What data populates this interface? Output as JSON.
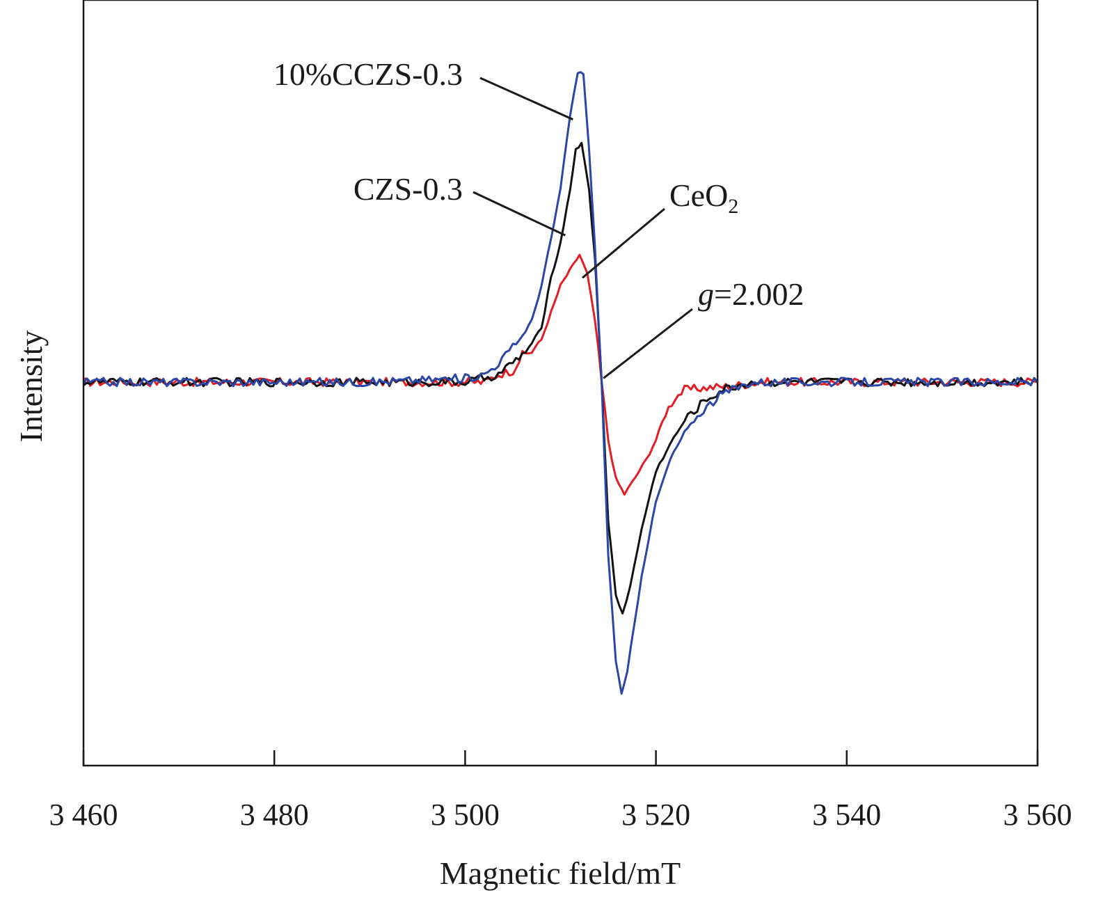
{
  "chart_data": {
    "type": "line",
    "xlabel": "Magnetic field/mT",
    "ylabel": "Intensity",
    "xlim": [
      3460,
      3560
    ],
    "ylim": [
      -1.0,
      1.0
    ],
    "x_ticks": [
      3460,
      3480,
      3500,
      3520,
      3540,
      3560
    ],
    "x_tick_labels": [
      "3 460",
      "3 480",
      "3 500",
      "3 520",
      "3 540",
      "3 560"
    ],
    "y_ticks_shown": false,
    "grid": false,
    "legend": "none (series labeled by annotations with leader lines)",
    "series": [
      {
        "name": "CeO2",
        "color": "#e31e24",
        "points": [
          [
            3460,
            0.0
          ],
          [
            3490,
            0.0
          ],
          [
            3500,
            0.0
          ],
          [
            3502,
            0.0
          ],
          [
            3503.5,
            0.02
          ],
          [
            3505,
            0.03
          ],
          [
            3506,
            0.07
          ],
          [
            3507,
            0.08
          ],
          [
            3508,
            0.11
          ],
          [
            3509,
            0.18
          ],
          [
            3510,
            0.25
          ],
          [
            3511,
            0.29
          ],
          [
            3512,
            0.33
          ],
          [
            3512.8,
            0.28
          ],
          [
            3513.6,
            0.16
          ],
          [
            3514.3,
            0.0
          ],
          [
            3515,
            -0.15
          ],
          [
            3515.8,
            -0.25
          ],
          [
            3516.7,
            -0.29
          ],
          [
            3517.5,
            -0.26
          ],
          [
            3519,
            -0.2
          ],
          [
            3520,
            -0.15
          ],
          [
            3521,
            -0.08
          ],
          [
            3522,
            -0.04
          ],
          [
            3523,
            -0.02
          ],
          [
            3525,
            -0.015
          ],
          [
            3528,
            -0.01
          ],
          [
            3531,
            0.0
          ],
          [
            3545,
            0.0
          ],
          [
            3560,
            0.0
          ]
        ]
      },
      {
        "name": "CZS-0.3",
        "color": "#111111",
        "points": [
          [
            3460,
            0.0
          ],
          [
            3490,
            0.0
          ],
          [
            3500,
            0.0
          ],
          [
            3502,
            0.01
          ],
          [
            3503.5,
            0.02
          ],
          [
            3505,
            0.05
          ],
          [
            3506,
            0.07
          ],
          [
            3507,
            0.1
          ],
          [
            3508,
            0.14
          ],
          [
            3509,
            0.27
          ],
          [
            3510,
            0.36
          ],
          [
            3511,
            0.5
          ],
          [
            3511.6,
            0.6
          ],
          [
            3512.2,
            0.62
          ],
          [
            3513,
            0.5
          ],
          [
            3513.6,
            0.32
          ],
          [
            3514.3,
            0.0
          ],
          [
            3515,
            -0.36
          ],
          [
            3515.8,
            -0.55
          ],
          [
            3516.5,
            -0.6
          ],
          [
            3517.3,
            -0.53
          ],
          [
            3518.5,
            -0.38
          ],
          [
            3520,
            -0.23
          ],
          [
            3521.5,
            -0.16
          ],
          [
            3523,
            -0.1
          ],
          [
            3525,
            -0.05
          ],
          [
            3527,
            -0.02
          ],
          [
            3530,
            0.0
          ],
          [
            3545,
            0.0
          ],
          [
            3560,
            0.0
          ]
        ]
      },
      {
        "name": "10%CCZS-0.3",
        "color": "#2a46a6",
        "points": [
          [
            3460,
            0.0
          ],
          [
            3490,
            0.0
          ],
          [
            3500,
            0.01
          ],
          [
            3502,
            0.02
          ],
          [
            3503.5,
            0.05
          ],
          [
            3505,
            0.09
          ],
          [
            3506,
            0.12
          ],
          [
            3507,
            0.16
          ],
          [
            3508,
            0.25
          ],
          [
            3509,
            0.37
          ],
          [
            3510,
            0.5
          ],
          [
            3511,
            0.69
          ],
          [
            3511.8,
            0.8
          ],
          [
            3512.4,
            0.8
          ],
          [
            3513,
            0.6
          ],
          [
            3513.6,
            0.35
          ],
          [
            3514.3,
            0.0
          ],
          [
            3515,
            -0.45
          ],
          [
            3515.8,
            -0.72
          ],
          [
            3516.4,
            -0.81
          ],
          [
            3517,
            -0.75
          ],
          [
            3518.5,
            -0.5
          ],
          [
            3520,
            -0.31
          ],
          [
            3521.5,
            -0.2
          ],
          [
            3523,
            -0.13
          ],
          [
            3525,
            -0.07
          ],
          [
            3527,
            -0.03
          ],
          [
            3530,
            0.0
          ],
          [
            3545,
            0.0
          ],
          [
            3560,
            0.0
          ]
        ]
      }
    ],
    "annotations": [
      {
        "key": "ccza",
        "label": "10%CCZS-0.3",
        "sub": "",
        "italic_prefix": "",
        "target": [
          3511.3,
          0.68
        ]
      },
      {
        "key": "czs",
        "label": "CZS-0.3",
        "sub": "",
        "italic_prefix": "",
        "target": [
          3510.5,
          0.38
        ]
      },
      {
        "key": "ceo2",
        "label": "CeO",
        "sub": "2",
        "italic_prefix": "",
        "target": [
          3512.3,
          0.27
        ]
      },
      {
        "key": "g",
        "label": "=2.002",
        "sub": "",
        "italic_prefix": "g",
        "target": [
          3514.5,
          0.01
        ]
      }
    ]
  }
}
